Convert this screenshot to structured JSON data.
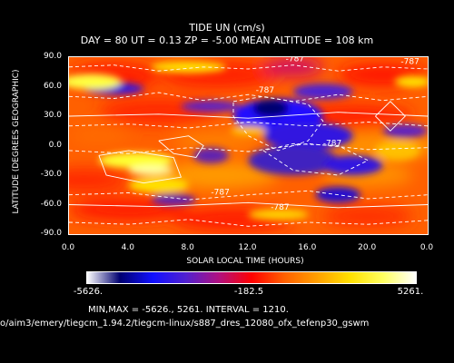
{
  "chart_data": {
    "type": "heatmap",
    "title": "TIDE UN (cm/s)",
    "subtitle": "DAY =  80   UT =  0.13   ZP =  -5.00   MEAN ALTITUDE = 108 km",
    "xlabel": "SOLAR LOCAL TIME (HOURS)",
    "ylabel": "LATITUDE (DEGREES GEOGRAPHIC)",
    "xlim": [
      0,
      24
    ],
    "ylim": [
      -90,
      90
    ],
    "x_tick_labels": [
      "0.0",
      "4.0",
      "8.0",
      "12.0",
      "16.0",
      "20.0",
      "0.0"
    ],
    "y_tick_labels": [
      "90.0",
      "60.0",
      "30.0",
      "0.0",
      "-30.0",
      "-60.0",
      "-90.0"
    ],
    "contour_labels": [
      "-787",
      "-787",
      "-787",
      "-787",
      "-787",
      "-787"
    ],
    "colorbar": {
      "min_label": "-5626.",
      "mid_label": "-182.5",
      "max_label": "5261.",
      "colors": [
        "#ffffff",
        "#000070",
        "#1010ff",
        "#5020d0",
        "#b01080",
        "#ff0000",
        "#ff6000",
        "#ffa000",
        "#ffe000",
        "#ffff60",
        "#ffffff"
      ]
    },
    "min": -5626,
    "max": 5261,
    "interval": 1210,
    "minmax_text": "MIN,MAX =      -5626.,       5261. INTERVAL =       1210.",
    "footer_path": "o/aim3/emery/tiegcm_1.94.2/tiegcm-linux/s887_dres_12080_ofx_tefenp30_gswm"
  }
}
